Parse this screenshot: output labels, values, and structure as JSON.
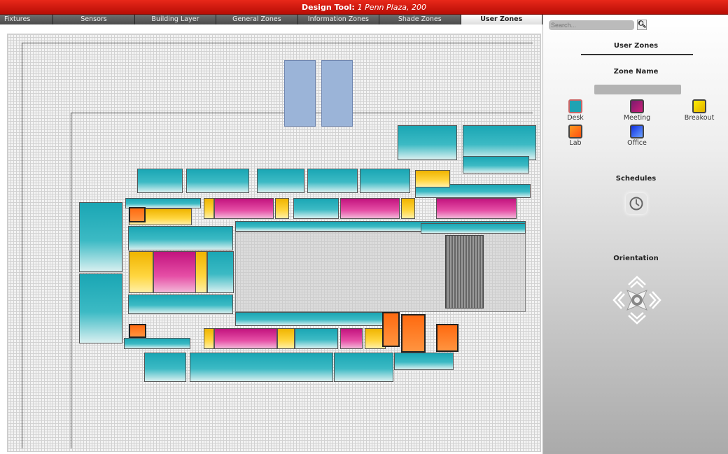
{
  "title": {
    "prefix": "Design Tool:",
    "project": "1 Penn Plaza, 200"
  },
  "tabs": [
    {
      "label": "Fixtures"
    },
    {
      "label": "Sensors"
    },
    {
      "label": "Building Layer"
    },
    {
      "label": "General Zones"
    },
    {
      "label": "Information Zones"
    },
    {
      "label": "Shade Zones"
    },
    {
      "label": "User Zones",
      "active": true
    }
  ],
  "sidebar": {
    "search_placeholder": "Search...",
    "search_icon": "magnifier-icon",
    "heading": "User Zones",
    "zone_name_label": "Zone Name",
    "zone_name_value": "",
    "zone_types": [
      {
        "label": "Desk",
        "color": "#1fa3b3"
      },
      {
        "label": "Meeting",
        "color": "#b0206f"
      },
      {
        "label": "Breakout",
        "color": "#f0d000"
      },
      {
        "label": "Lab",
        "color": "#ff6a10"
      },
      {
        "label": "Office",
        "color": "#2a4de0"
      }
    ],
    "schedules_label": "Schedules",
    "schedules_icon": "clock-icon",
    "orientation_label": "Orientation",
    "orientation_icon": "directional-pad-icon"
  }
}
